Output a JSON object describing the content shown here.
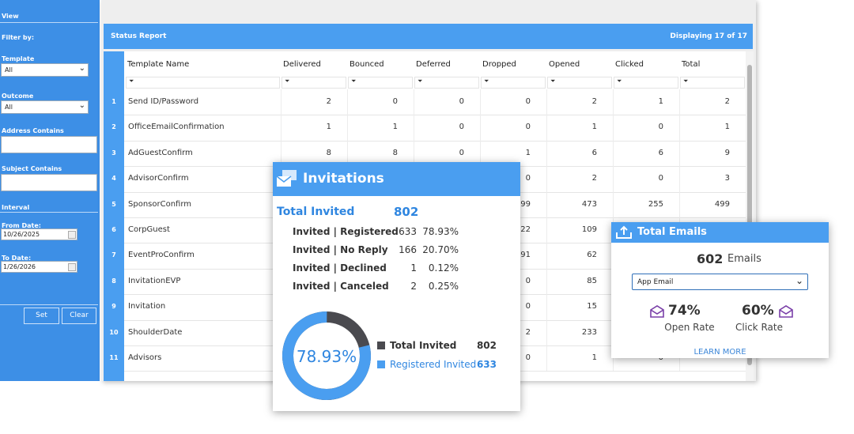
{
  "sidebar": {
    "view": "View",
    "filter_by": "Filter by:",
    "template": {
      "label": "Template",
      "value": "All"
    },
    "outcome": {
      "label": "Outcome",
      "value": "All"
    },
    "address_contains": "Address Contains",
    "subject_contains": "Subject Contains",
    "interval": "Interval",
    "from_date": {
      "label": "From Date:",
      "value": "10/26/2025"
    },
    "to_date": {
      "label": "To Date:",
      "value": "1/26/2026"
    },
    "buttons": [
      "Set",
      "Clear"
    ]
  },
  "report": {
    "title": "Status Report",
    "displaying": "Displaying 17 of 17",
    "columns": [
      "Template Name",
      "Delivered",
      "Bounced",
      "Deferred",
      "Dropped",
      "Opened",
      "Clicked",
      "Total"
    ],
    "rows": [
      {
        "number": 1,
        "name": "Send ID/Password",
        "cells": [
          2,
          0,
          0,
          0,
          2,
          1,
          2
        ]
      },
      {
        "number": 2,
        "name": "OfficeEmailConfirmation",
        "cells": [
          1,
          1,
          0,
          0,
          1,
          0,
          1
        ]
      },
      {
        "number": 3,
        "name": "AdGuestConfirm",
        "cells": [
          8,
          8,
          0,
          1,
          6,
          6,
          9
        ]
      },
      {
        "number": 4,
        "name": "AdvisorConfirm",
        "cells": [
          null,
          null,
          null,
          0,
          2,
          0,
          3
        ]
      },
      {
        "number": 5,
        "name": "SponsorConfirm",
        "cells": [
          null,
          null,
          null,
          99,
          473,
          255,
          499
        ]
      },
      {
        "number": 6,
        "name": "CorpGuest",
        "cells": [
          null,
          null,
          null,
          22,
          109,
          null,
          null
        ]
      },
      {
        "number": 7,
        "name": "EventProConfirm",
        "cells": [
          null,
          null,
          null,
          91,
          62,
          null,
          null
        ]
      },
      {
        "number": 8,
        "name": "InvitationEVP",
        "cells": [
          null,
          null,
          null,
          0,
          85,
          null,
          null
        ]
      },
      {
        "number": 9,
        "name": "Invitation",
        "cells": [
          null,
          null,
          null,
          0,
          15,
          null,
          null
        ]
      },
      {
        "number": 10,
        "name": "ShoulderDate",
        "cells": [
          null,
          null,
          null,
          2,
          233,
          null,
          null
        ]
      },
      {
        "number": 11,
        "name": "Advisors",
        "cells": [
          null,
          null,
          null,
          0,
          1,
          0,
          null
        ]
      }
    ]
  },
  "invitations": {
    "title": "Invitations",
    "total_label": "Total Invited",
    "total": 802,
    "breakdown": [
      {
        "label": "Invited | Registered",
        "count": 633,
        "percent": "78.93%"
      },
      {
        "label": "Invited | No Reply",
        "count": 166,
        "percent": "20.70%"
      },
      {
        "label": "Invited | Declined",
        "count": 1,
        "percent": "0.12%"
      },
      {
        "label": "Invited | Canceled",
        "count": 2,
        "percent": "0.25%"
      }
    ],
    "donut_center": "78.93%",
    "legend": [
      {
        "label": "Total Invited",
        "value": 802,
        "color": "#4a4a4f"
      },
      {
        "label": "Registered Invited",
        "value": 633,
        "color": "#4a9ef0"
      }
    ]
  },
  "total_emails": {
    "title": "Total Emails",
    "count": 602,
    "unit": "Emails",
    "select": "App Email",
    "stats": [
      {
        "value": "74%",
        "label": "Open Rate"
      },
      {
        "value": "60%",
        "label": "Click Rate"
      }
    ],
    "link": "LEARN MORE"
  }
}
